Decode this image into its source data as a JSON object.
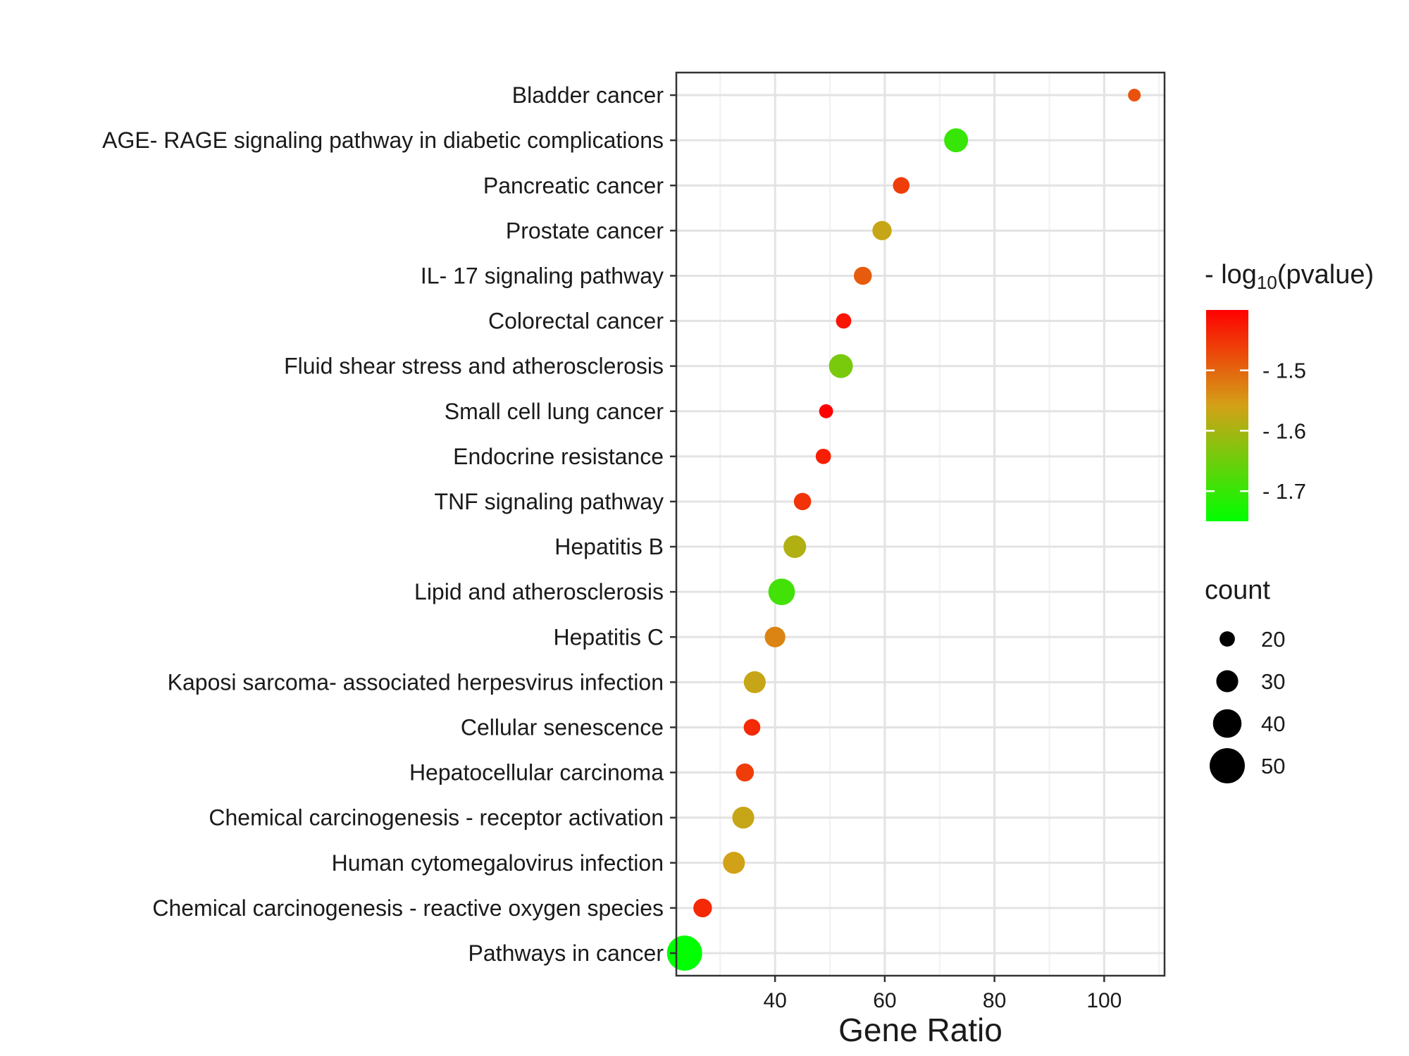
{
  "chart_data": {
    "type": "scatter",
    "xlabel": "Gene Ratio",
    "ylabel": "",
    "xlim": [
      22,
      111
    ],
    "xticks": [
      40,
      60,
      80,
      100
    ],
    "grid": true,
    "categories": [
      "Bladder cancer",
      "AGE- RAGE signaling pathway in diabetic complications",
      "Pancreatic cancer",
      "Prostate cancer",
      "IL- 17 signaling pathway",
      "Colorectal cancer",
      "Fluid shear stress and atherosclerosis",
      "Small cell lung cancer",
      "Endocrine resistance",
      "TNF signaling pathway",
      "Hepatitis B",
      "Lipid and atherosclerosis",
      "Hepatitis C",
      "Kaposi sarcoma- associated herpesvirus infection",
      "Cellular senescence",
      "Hepatocellular carcinoma",
      "Chemical carcinogenesis -  receptor activation",
      "Human cytomegalovirus infection",
      "Chemical carcinogenesis -  reactive oxygen species",
      "Pathways in cancer"
    ],
    "gene_ratio": [
      105.5,
      73,
      63,
      59.5,
      56,
      52.5,
      52,
      49.3,
      48.8,
      45,
      43.6,
      41.2,
      40,
      36.3,
      35.8,
      34.5,
      34.2,
      32.5,
      26.8,
      23.5
    ],
    "neg_log10_pvalue": [
      -1.48,
      -1.7,
      -1.46,
      -1.57,
      -1.49,
      -1.42,
      -1.64,
      -1.4,
      -1.43,
      -1.45,
      -1.59,
      -1.69,
      -1.53,
      -1.57,
      -1.44,
      -1.46,
      -1.57,
      -1.56,
      -1.44,
      -1.75
    ],
    "count": [
      16,
      33,
      22,
      26,
      24,
      20,
      33,
      18,
      20,
      23,
      31,
      37,
      28,
      30,
      22,
      24,
      30,
      30,
      25,
      50
    ],
    "color_legend": {
      "title_prefix": "- log",
      "title_sub": "10",
      "title_suffix": "(pvalue)",
      "ticks": [
        -1.5,
        -1.6,
        -1.7
      ],
      "tick_labels": [
        "- 1.5",
        "- 1.6",
        "- 1.7"
      ],
      "range": [
        -1.4,
        -1.75
      ],
      "color_high": "#ff0000",
      "color_low": "#00ff00",
      "color_mid": "#d4a017"
    },
    "size_legend": {
      "title": "count",
      "values": [
        20,
        30,
        40,
        50
      ],
      "labels": [
        "20",
        "30",
        "40",
        "50"
      ]
    }
  }
}
